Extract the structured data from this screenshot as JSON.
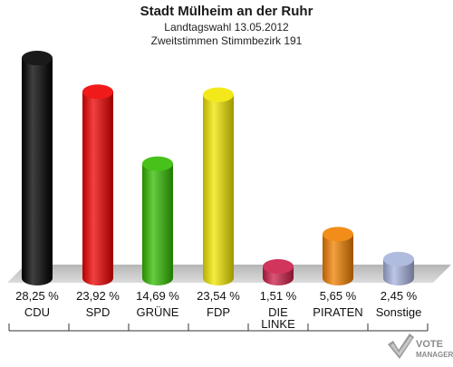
{
  "header": {
    "title": "Stadt Mülheim an der Ruhr",
    "subtitle1": "Landtagswahl 13.05.2012",
    "subtitle2": "Zweitstimmen Stimmbezirk 191"
  },
  "chart_data": {
    "type": "bar",
    "categories": [
      "CDU",
      "SPD",
      "GRÜNE",
      "FDP",
      "DIE LINKE",
      "PIRATEN",
      "Sonstige"
    ],
    "values": [
      28.25,
      23.92,
      14.69,
      23.54,
      1.51,
      5.65,
      2.45
    ],
    "value_labels": [
      "28,25 %",
      "23,92 %",
      "14,69 %",
      "23,54 %",
      "1,51 %",
      "5,65 %",
      "2,45 %"
    ],
    "colors": [
      "#000000",
      "#ee0000",
      "#33bb00",
      "#f2e600",
      "#cc1e4a",
      "#f08000",
      "#a7b3dd"
    ],
    "title": "Stadt Mülheim an der Ruhr",
    "xlabel": "",
    "ylabel": "",
    "grid": false,
    "legend": "none"
  },
  "logo": {
    "line1": "VOTE",
    "line2": "MANAGER",
    "icon": "vote-manager-check-logo"
  }
}
